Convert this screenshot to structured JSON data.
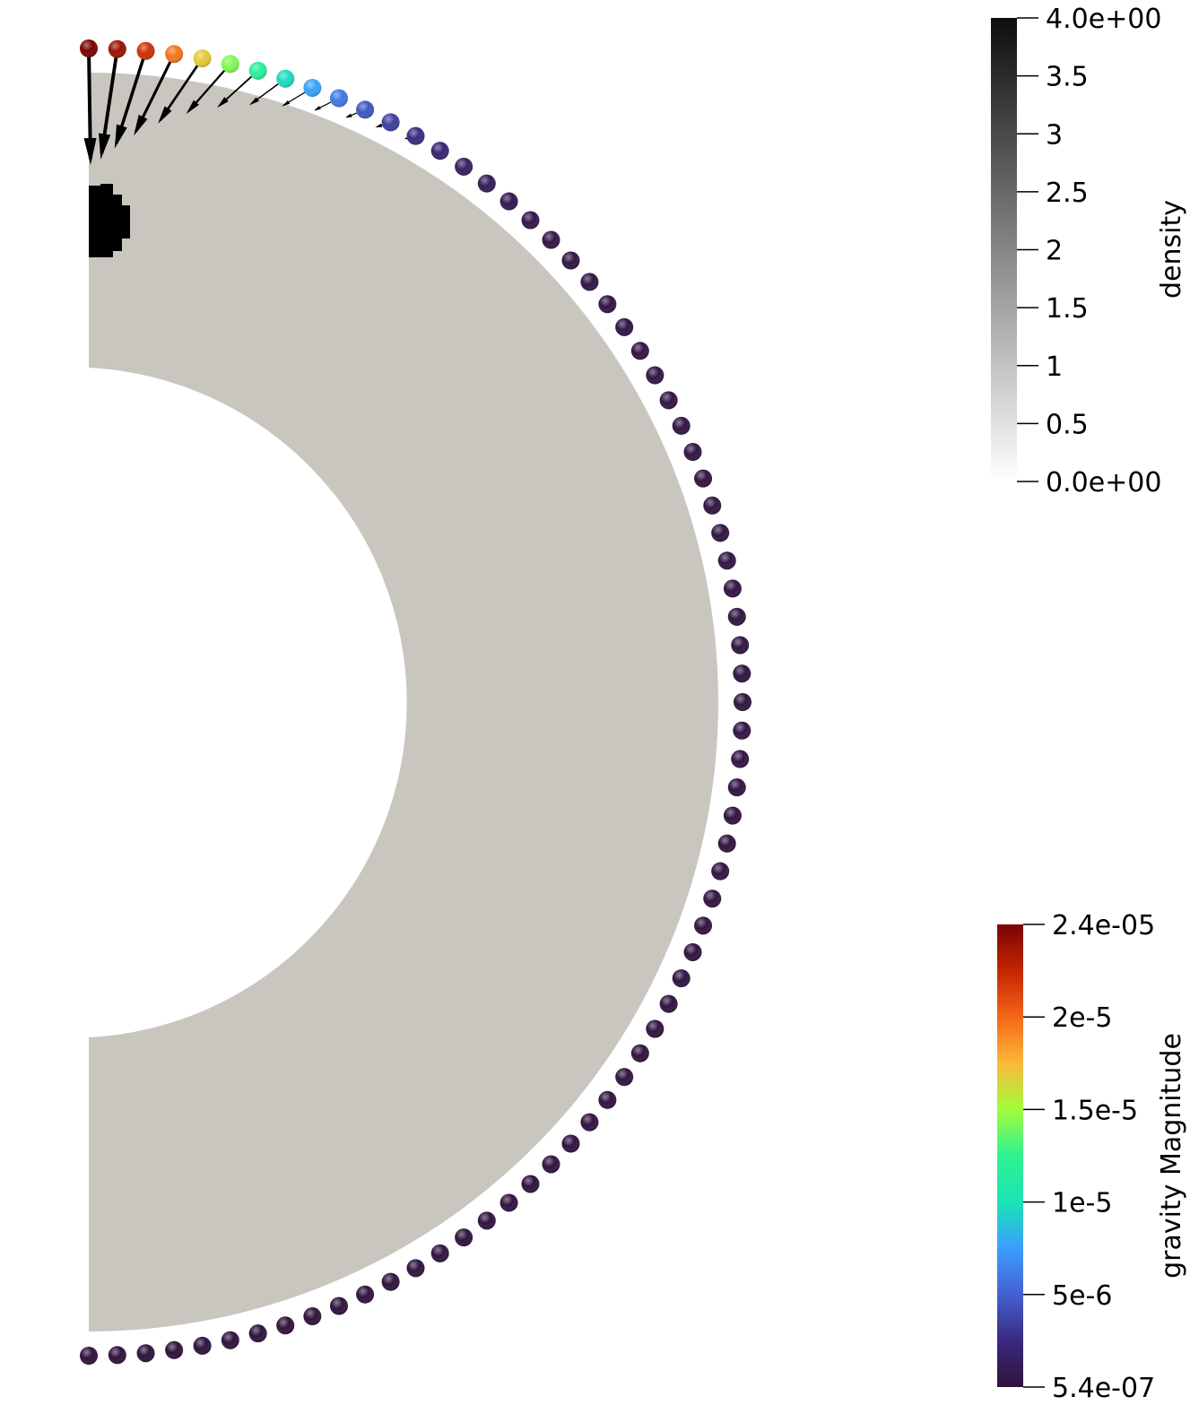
{
  "scene": {
    "shell": {
      "fill": "#c8c6be"
    },
    "anomaly": {
      "fill": "#000000"
    },
    "station_count": 73,
    "glyph_color": "#000000"
  },
  "density_bar": {
    "title": "density",
    "range": [
      0,
      4
    ],
    "ticks": [
      "4.0e+00",
      "3.5",
      "3",
      "2.5",
      "2",
      "1.5",
      "1",
      "0.5",
      "0.0e+00"
    ],
    "colors": [
      "#0d0d0d",
      "#ffffff"
    ]
  },
  "gravity_bar": {
    "title": "gravity Magnitude",
    "range": [
      5.4e-07,
      2.4e-05
    ],
    "ticks": [
      "2.4e-05",
      "2e-5",
      "1.5e-5",
      "1e-5",
      "5e-6",
      "5.4e-07"
    ],
    "colors": [
      "#7a0403",
      "#c42503",
      "#f46518",
      "#fbb938",
      "#a2fc3c",
      "#2ff291",
      "#1ae4b6",
      "#3a9ffd",
      "#4460d0",
      "#3a2a7f",
      "#30123b"
    ]
  }
}
